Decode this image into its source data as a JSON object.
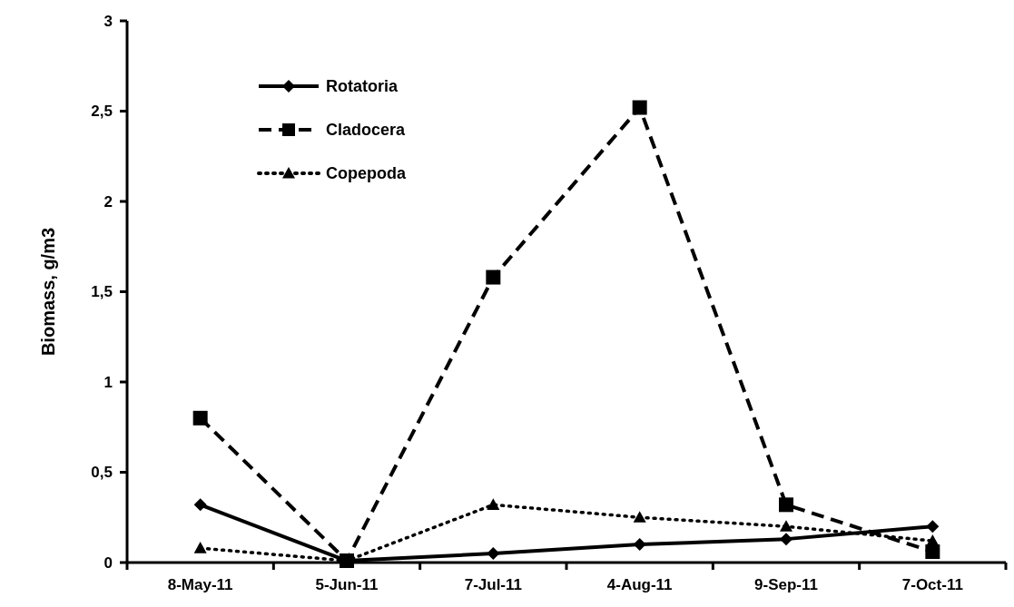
{
  "chart_data": {
    "type": "line",
    "ylabel": "Biomass, g/m3",
    "categories": [
      "8-May-11",
      "5-Jun-11",
      "7-Jul-11",
      "4-Aug-11",
      "9-Sep-11",
      "7-Oct-11"
    ],
    "series": [
      {
        "name": "Rotatoria",
        "color": "#000000",
        "values": [
          0.32,
          0.01,
          0.05,
          0.1,
          0.13,
          0.2
        ],
        "marker": "diamond",
        "line_style": "solid"
      },
      {
        "name": "Cladocera",
        "color": "#000000",
        "values": [
          0.8,
          0.01,
          1.58,
          2.52,
          0.32,
          0.06
        ],
        "marker": "square",
        "line_style": "dashed"
      },
      {
        "name": "Copepoda",
        "color": "#000000",
        "values": [
          0.08,
          0.01,
          0.32,
          0.25,
          0.2,
          0.12
        ],
        "marker": "triangle",
        "line_style": "dotted"
      }
    ],
    "ylim": [
      0,
      3
    ],
    "yticks": [
      0,
      {
        "value": 0.5,
        "label": "0,5"
      },
      1,
      {
        "value": 1.5,
        "label": "1,5"
      },
      2,
      {
        "value": 2.5,
        "label": "2,5"
      },
      3
    ],
    "grid": false,
    "legend": "top left"
  }
}
